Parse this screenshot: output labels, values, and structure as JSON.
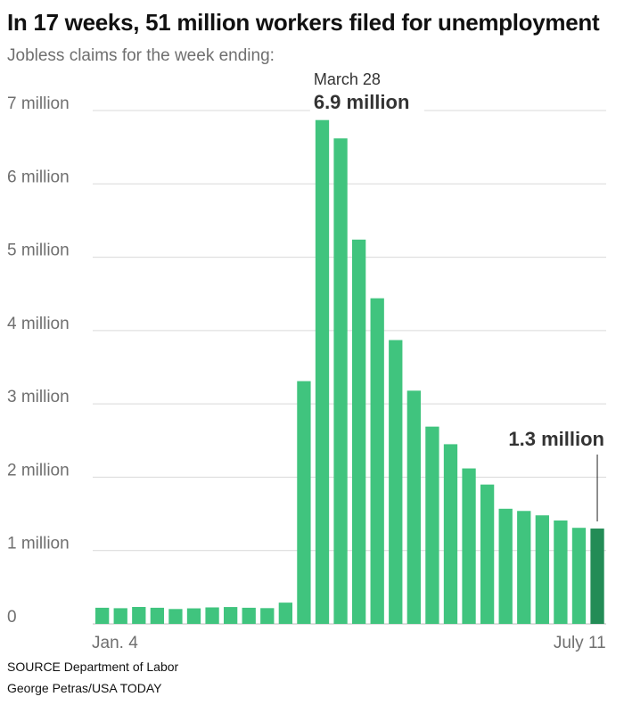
{
  "title": "In 17 weeks, 51 million workers filed for unemployment",
  "subtitle": "Jobless claims for the week ending:",
  "source": "SOURCE Department of Labor",
  "credit": "George Petras/USA TODAY",
  "colors": {
    "bar": "#40c47e",
    "highlight_bar": "#238c56",
    "grid": "#d9d9d9",
    "tick_label": "#6f6f6f",
    "annotation_text": "#333333"
  },
  "chart_data": {
    "type": "bar",
    "title": "In 17 weeks, 51 million workers filed for unemployment",
    "subtitle": "Jobless claims for the week ending:",
    "xlabel": "",
    "ylabel": "",
    "ylim": [
      0,
      7000000
    ],
    "grid": true,
    "y_ticks": [
      0,
      1000000,
      2000000,
      3000000,
      4000000,
      5000000,
      6000000,
      7000000
    ],
    "y_tick_labels": [
      "0",
      "1 million",
      "2 million",
      "3 million",
      "4 million",
      "5 million",
      "6 million",
      "7 million"
    ],
    "x_tick_labels": [
      {
        "index": 0,
        "label": "Jan. 4"
      },
      {
        "index": 27,
        "label": "July 11"
      }
    ],
    "values": [
      220000,
      214000,
      231000,
      220000,
      203000,
      212000,
      225000,
      230000,
      220000,
      215000,
      290000,
      3310000,
      6870000,
      6620000,
      5240000,
      4440000,
      3870000,
      3180000,
      2690000,
      2450000,
      2120000,
      1900000,
      1570000,
      1540000,
      1480000,
      1410000,
      1310000,
      1300000
    ],
    "highlight_index": 27,
    "annotations": [
      {
        "index": 12,
        "date": "March 28",
        "value_label": "6.9 million"
      },
      {
        "index": 27,
        "value_label": "1.3 million"
      }
    ]
  }
}
